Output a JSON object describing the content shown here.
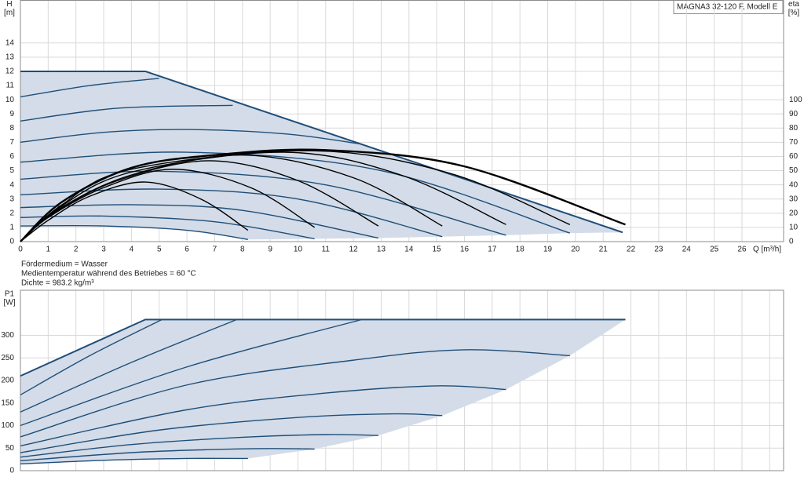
{
  "legend_box": "MAGNA3 32-120 F, Modell E",
  "notes": [
    "Fördermedium = Wasser",
    "Medientemperatur während des Betriebes = 60 °C",
    "Dichte = 983.2 kg/m³"
  ],
  "chart_data": [
    {
      "type": "line",
      "y_label": "H",
      "y_unit": "[m]",
      "y2_label": "eta",
      "y2_unit": "[%]",
      "x_label": "Q [m³/h]",
      "xlim": [
        0,
        27.5
      ],
      "xticks": [
        0,
        1,
        2,
        3,
        4,
        5,
        6,
        7,
        8,
        9,
        10,
        11,
        12,
        13,
        14,
        15,
        16,
        17,
        18,
        19,
        20,
        21,
        22,
        23,
        24,
        25,
        26
      ],
      "ylim": [
        0,
        17
      ],
      "yticks": [
        0,
        1,
        2,
        3,
        4,
        5,
        6,
        7,
        8,
        9,
        10,
        11,
        12,
        13,
        14
      ],
      "y2lim": [
        0,
        170
      ],
      "y2ticks": [
        0,
        10,
        20,
        30,
        40,
        50,
        60,
        70,
        80,
        90,
        100
      ],
      "grid": true,
      "xtick_labels": true,
      "fill": "#d3dce8",
      "series": [
        {
          "color": "#1f4e79",
          "smooth": false,
          "line_width": 2,
          "x": [
            0,
            4.5,
            21.7
          ],
          "values": [
            12,
            12,
            0.65
          ]
        },
        {
          "color": "#1f4e79",
          "x": [
            0,
            2.5,
            5
          ],
          "values": [
            10.2,
            11,
            11.5
          ]
        },
        {
          "color": "#1f4e79",
          "x": [
            0,
            3.5,
            7.65
          ],
          "values": [
            8.5,
            9.4,
            9.6
          ]
        },
        {
          "color": "#1f4e79",
          "x": [
            0,
            3,
            6,
            9.5,
            12.2
          ],
          "values": [
            7,
            7.7,
            7.9,
            7.6,
            6.9
          ]
        },
        {
          "color": "#1f4e79",
          "x": [
            0,
            6,
            13,
            19.8
          ],
          "values": [
            5.6,
            6.3,
            5,
            0.6
          ]
        },
        {
          "color": "#1f4e79",
          "x": [
            0,
            5,
            11,
            17.5
          ],
          "values": [
            4.4,
            4.95,
            4,
            0.45
          ]
        },
        {
          "color": "#1f4e79",
          "x": [
            0,
            5,
            10,
            15.2
          ],
          "values": [
            3.3,
            3.7,
            3,
            0.35
          ]
        },
        {
          "color": "#1f4e79",
          "x": [
            0,
            4,
            8,
            12.9
          ],
          "values": [
            2.4,
            2.6,
            2.2,
            0.25
          ]
        },
        {
          "color": "#1f4e79",
          "x": [
            0,
            3,
            7,
            10.6
          ],
          "values": [
            1.7,
            1.8,
            1.4,
            0.2
          ]
        },
        {
          "color": "#1f4e79",
          "x": [
            0,
            3,
            6,
            8.2
          ],
          "values": [
            1.1,
            1.1,
            0.8,
            0.15
          ]
        },
        {
          "color": "#000000",
          "axis": "y2",
          "x": [
            0,
            1,
            2.5,
            4.5,
            6.5,
            8.2
          ],
          "values": [
            0,
            15,
            32,
            42,
            30,
            8
          ]
        },
        {
          "color": "#000000",
          "axis": "y2",
          "x": [
            0,
            1,
            3,
            5.5,
            8.3,
            10.6
          ],
          "values": [
            0,
            17,
            38,
            51,
            38,
            10
          ]
        },
        {
          "color": "#000000",
          "axis": "y2",
          "x": [
            0,
            1.2,
            3.5,
            6.8,
            10,
            12.9
          ],
          "values": [
            0,
            20,
            43,
            57,
            43,
            11
          ]
        },
        {
          "color": "#000000",
          "axis": "y2",
          "x": [
            0,
            1.3,
            4,
            8,
            12,
            15.2
          ],
          "values": [
            0,
            22,
            47,
            61,
            45,
            11
          ]
        },
        {
          "color": "#000000",
          "axis": "y2",
          "x": [
            0,
            1.4,
            4,
            9.5,
            13.7,
            17.5
          ],
          "values": [
            0,
            24,
            49,
            63,
            47,
            12
          ]
        },
        {
          "color": "#000000",
          "axis": "y2",
          "x": [
            0,
            1.5,
            4,
            10.5,
            15.5,
            19.8
          ],
          "values": [
            0,
            26,
            51,
            64,
            48,
            12
          ]
        },
        {
          "color": "#000000",
          "axis": "y2",
          "line_width": 2.4,
          "x": [
            0,
            1.5,
            4,
            7,
            11,
            16,
            21.8
          ],
          "values": [
            0,
            28,
            52,
            61,
            64.5,
            53,
            12
          ]
        }
      ]
    },
    {
      "type": "line",
      "y_label": "P1",
      "y_unit": "[W]",
      "xlim": [
        0,
        27.5
      ],
      "xticks": [
        0,
        1,
        2,
        3,
        4,
        5,
        6,
        7,
        8,
        9,
        10,
        11,
        12,
        13,
        14,
        15,
        16,
        17,
        18,
        19,
        20,
        21,
        22,
        23,
        24,
        25,
        26,
        27
      ],
      "ylim": [
        0,
        400
      ],
      "yticks": [
        0,
        50,
        100,
        150,
        200,
        250,
        300
      ],
      "grid": true,
      "xtick_labels": false,
      "fill": "#d3dce8",
      "series": [
        {
          "color": "#1f4e79",
          "smooth": false,
          "line_width": 2,
          "x": [
            0,
            4.5,
            21.8
          ],
          "values": [
            210,
            335,
            335
          ]
        },
        {
          "color": "#1f4e79",
          "x": [
            0,
            2.5,
            5.1
          ],
          "values": [
            168,
            255,
            335
          ]
        },
        {
          "color": "#1f4e79",
          "x": [
            0,
            4,
            7.8
          ],
          "values": [
            130,
            240,
            335
          ]
        },
        {
          "color": "#1f4e79",
          "x": [
            0,
            6,
            12.3
          ],
          "values": [
            100,
            230,
            335
          ]
        },
        {
          "color": "#1f4e79",
          "x": [
            0,
            6,
            12,
            16,
            19.8
          ],
          "values": [
            75,
            190,
            245,
            268,
            255
          ]
        },
        {
          "color": "#1f4e79",
          "x": [
            0,
            6,
            11,
            15,
            17.5
          ],
          "values": [
            55,
            135,
            172,
            188,
            180
          ]
        },
        {
          "color": "#1f4e79",
          "x": [
            0,
            5,
            10,
            13.5,
            15.2
          ],
          "values": [
            40,
            90,
            118,
            126,
            122
          ]
        },
        {
          "color": "#1f4e79",
          "x": [
            0,
            4,
            8,
            11,
            12.9
          ],
          "values": [
            30,
            58,
            74,
            80,
            78
          ]
        },
        {
          "color": "#1f4e79",
          "x": [
            0,
            4,
            7,
            9,
            10.6
          ],
          "values": [
            22,
            40,
            47,
            49,
            48
          ]
        },
        {
          "color": "#1f4e79",
          "x": [
            0,
            3,
            6,
            8.2
          ],
          "values": [
            15,
            23,
            27,
            27
          ]
        }
      ]
    }
  ]
}
